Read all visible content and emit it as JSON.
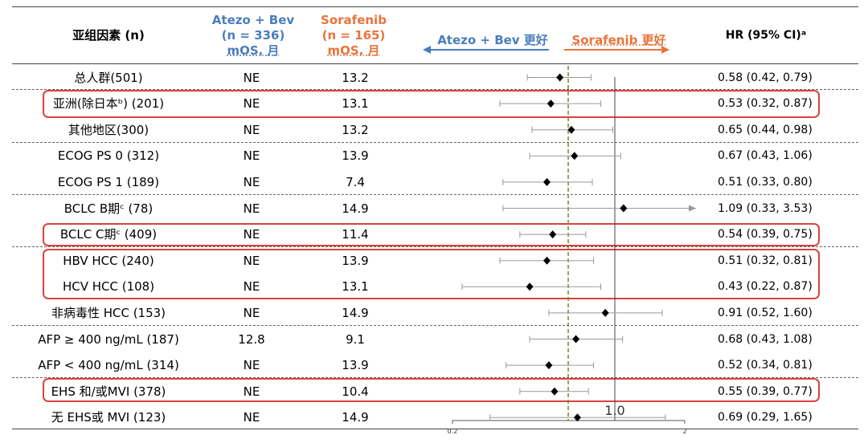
{
  "header": {
    "subgroup_label": "亚组因素 (n)",
    "atezo_line1": "Atezo + Bev",
    "atezo_line2": "(n = 336)",
    "atezo_line3": "mOS, 月",
    "sor_line1": "Sorafenib",
    "sor_line2": "(n = 165)",
    "sor_line3": "mOS, 月",
    "favors_left": "Atezo + Bev 更好",
    "favors_right": "Sorafenib 更好",
    "hr_label": "HR (95% CI)ᵃ"
  },
  "colors": {
    "atezo": "#4a7ebb",
    "sorafenib": "#e8743b",
    "highlight": "#d9433e",
    "median_line": "#6b8e23"
  },
  "chart_data": {
    "type": "forest",
    "xscale": "log",
    "xlim": [
      0.2,
      2
    ],
    "reference_line": 1.0,
    "reference_label": "1.0",
    "median_reference": 0.63,
    "x_tick_labels": [
      "0.2",
      "2"
    ],
    "rows": [
      {
        "label": "总人群(501)",
        "atezo_mos": "NE",
        "sor_mos": "13.2",
        "hr": 0.58,
        "lo": 0.42,
        "hi": 0.79,
        "hr_text": "0.58 (0.42, 0.79)"
      },
      {
        "label": "亚洲(除日本ᵇ) (201)",
        "atezo_mos": "NE",
        "sor_mos": "13.1",
        "hr": 0.53,
        "lo": 0.32,
        "hi": 0.87,
        "hr_text": "0.53 (0.32, 0.87)"
      },
      {
        "label": "其他地区(300)",
        "atezo_mos": "NE",
        "sor_mos": "13.2",
        "hr": 0.65,
        "lo": 0.44,
        "hi": 0.98,
        "hr_text": "0.65 (0.44, 0.98)"
      },
      {
        "label": "ECOG PS 0 (312)",
        "atezo_mos": "NE",
        "sor_mos": "13.9",
        "hr": 0.67,
        "lo": 0.43,
        "hi": 1.06,
        "hr_text": "0.67 (0.43, 1.06)"
      },
      {
        "label": "ECOG PS 1 (189)",
        "atezo_mos": "NE",
        "sor_mos": "7.4",
        "hr": 0.51,
        "lo": 0.33,
        "hi": 0.8,
        "hr_text": "0.51 (0.33, 0.80)"
      },
      {
        "label": "BCLC B期ᶜ (78)",
        "atezo_mos": "NE",
        "sor_mos": "14.9",
        "hr": 1.09,
        "lo": 0.33,
        "hi": 3.53,
        "hr_text": "1.09 (0.33, 3.53)"
      },
      {
        "label": "BCLC C期ᶜ (409)",
        "atezo_mos": "NE",
        "sor_mos": "11.4",
        "hr": 0.54,
        "lo": 0.39,
        "hi": 0.75,
        "hr_text": "0.54 (0.39, 0.75)"
      },
      {
        "label": "HBV HCC (240)",
        "atezo_mos": "NE",
        "sor_mos": "13.9",
        "hr": 0.51,
        "lo": 0.32,
        "hi": 0.81,
        "hr_text": "0.51 (0.32, 0.81)"
      },
      {
        "label": "HCV HCC (108)",
        "atezo_mos": "NE",
        "sor_mos": "13.1",
        "hr": 0.43,
        "lo": 0.22,
        "hi": 0.87,
        "hr_text": "0.43 (0.22, 0.87)"
      },
      {
        "label": "非病毒性 HCC (153)",
        "atezo_mos": "NE",
        "sor_mos": "14.9",
        "hr": 0.91,
        "lo": 0.52,
        "hi": 1.6,
        "hr_text": "0.91 (0.52, 1.60)"
      },
      {
        "label": "AFP ≥ 400 ng/mL (187)",
        "atezo_mos": "12.8",
        "sor_mos": "9.1",
        "hr": 0.68,
        "lo": 0.43,
        "hi": 1.08,
        "hr_text": "0.68 (0.43, 1.08)"
      },
      {
        "label": "AFP < 400 ng/mL (314)",
        "atezo_mos": "NE",
        "sor_mos": "13.9",
        "hr": 0.52,
        "lo": 0.34,
        "hi": 0.81,
        "hr_text": "0.52 (0.34, 0.81)"
      },
      {
        "label": "EHS 和/或MVI (378)",
        "atezo_mos": "NE",
        "sor_mos": "10.4",
        "hr": 0.55,
        "lo": 0.39,
        "hi": 0.77,
        "hr_text": "0.55 (0.39, 0.77)"
      },
      {
        "label": "无 EHS或 MVI (123)",
        "atezo_mos": "NE",
        "sor_mos": "14.9",
        "hr": 0.69,
        "lo": 0.29,
        "hi": 1.65,
        "hr_text": "0.69 (0.29, 1.65)"
      }
    ]
  }
}
